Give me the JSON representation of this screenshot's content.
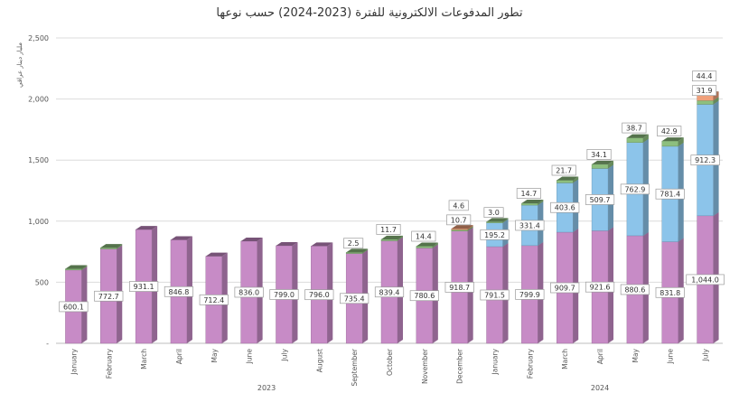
{
  "chart_data": {
    "type": "bar",
    "stacked": true,
    "title": "تطور المدفوعات الالكترونية للفترة (2023-2024) حسب نوعها",
    "ylabel": "مليار دينار عراقي",
    "ylim": [
      0,
      2500
    ],
    "yticks": [
      "-",
      "500",
      "1,000",
      "1,500",
      "2,000",
      "2,500"
    ],
    "grid": true,
    "categories": [
      "January",
      "February",
      "March",
      "April",
      "May",
      "June",
      "July",
      "August",
      "September",
      "October",
      "November",
      "December",
      "January",
      "February",
      "March",
      "April",
      "May",
      "June",
      "July"
    ],
    "groups": [
      {
        "label": "2023",
        "from": 0,
        "to": 11
      },
      {
        "label": "2024",
        "from": 12,
        "to": 18
      }
    ],
    "series": [
      {
        "color": "#c78bc6",
        "values": [
          600.1,
          772.7,
          931.1,
          846.8,
          712.4,
          836.0,
          799.0,
          796.0,
          735.4,
          839.4,
          780.6,
          918.7,
          791.5,
          799.9,
          909.7,
          921.6,
          880.6,
          831.8,
          1044.0
        ],
        "labels": [
          "600.1",
          "772.7",
          "931.1",
          "846.8",
          "712.4",
          "836.0",
          "799.0",
          "796.0",
          "735.4",
          "839.4",
          "780.6",
          "918.7",
          "791.5",
          "799.9",
          "909.7",
          "921.6",
          "880.6",
          "831.8",
          "1,044.0"
        ]
      },
      {
        "color": "#8cc4ea",
        "values": [
          0,
          0,
          0,
          0,
          0,
          0,
          0,
          0,
          0,
          0,
          0,
          0,
          195.2,
          331.4,
          403.6,
          509.7,
          762.9,
          781.4,
          912.3
        ],
        "labels": [
          "",
          "",
          "",
          "",
          "",
          "",
          "",
          "",
          "",
          "",
          "",
          "",
          "195.2",
          "331.4",
          "403.6",
          "509.7",
          "762.9",
          "781.4",
          "912.3"
        ]
      },
      {
        "color": "#8dbf7e",
        "values": [
          10,
          10,
          0,
          0,
          0,
          0,
          0,
          0,
          2.5,
          11.7,
          14.4,
          10.7,
          3.0,
          14.7,
          21.7,
          34.1,
          38.7,
          42.9,
          31.9
        ],
        "labels": [
          "",
          "",
          "",
          "",
          "",
          "",
          "",
          "",
          "2.5",
          "11.7",
          "14.4",
          "10.7",
          "3.0",
          "14.7",
          "21.7",
          "34.1",
          "38.7",
          "42.9",
          "31.9"
        ]
      },
      {
        "color": "#f0a07a",
        "values": [
          0,
          0,
          0,
          0,
          0,
          0,
          0,
          0,
          0,
          0,
          0,
          4.6,
          0,
          0,
          0,
          0,
          0,
          0,
          44.4
        ],
        "labels": [
          "",
          "",
          "",
          "",
          "",
          "",
          "",
          "",
          "",
          "",
          "",
          "4.6",
          "",
          "",
          "",
          "",
          "",
          "",
          "44.4"
        ]
      }
    ]
  }
}
